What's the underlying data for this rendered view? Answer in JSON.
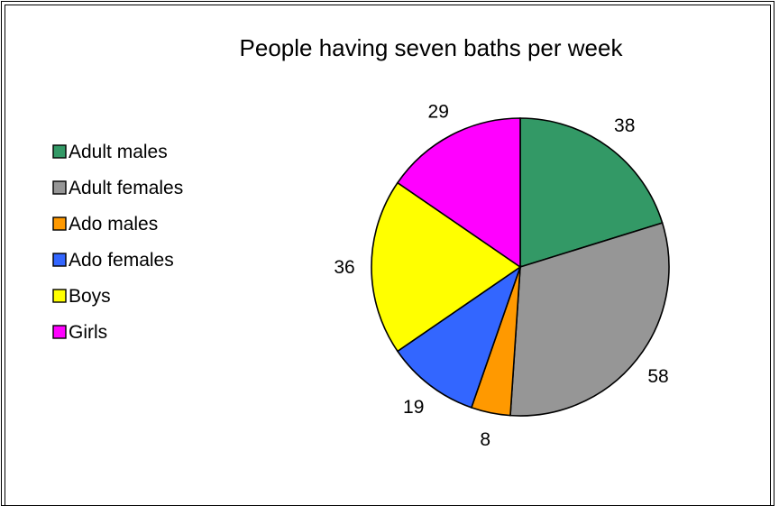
{
  "chart_data": {
    "type": "pie",
    "title": "People having seven baths per week",
    "categories": [
      "Adult males",
      "Adult females",
      "Ado males",
      "Ado females",
      "Boys",
      "Girls"
    ],
    "values": [
      38,
      58,
      8,
      19,
      36,
      29
    ],
    "colors": [
      "#339966",
      "#969696",
      "#ff9900",
      "#3366ff",
      "#ffff00",
      "#ff00ff"
    ],
    "legend_position": "left",
    "data_labels": true,
    "start_angle_deg": 0,
    "direction": "clockwise"
  }
}
